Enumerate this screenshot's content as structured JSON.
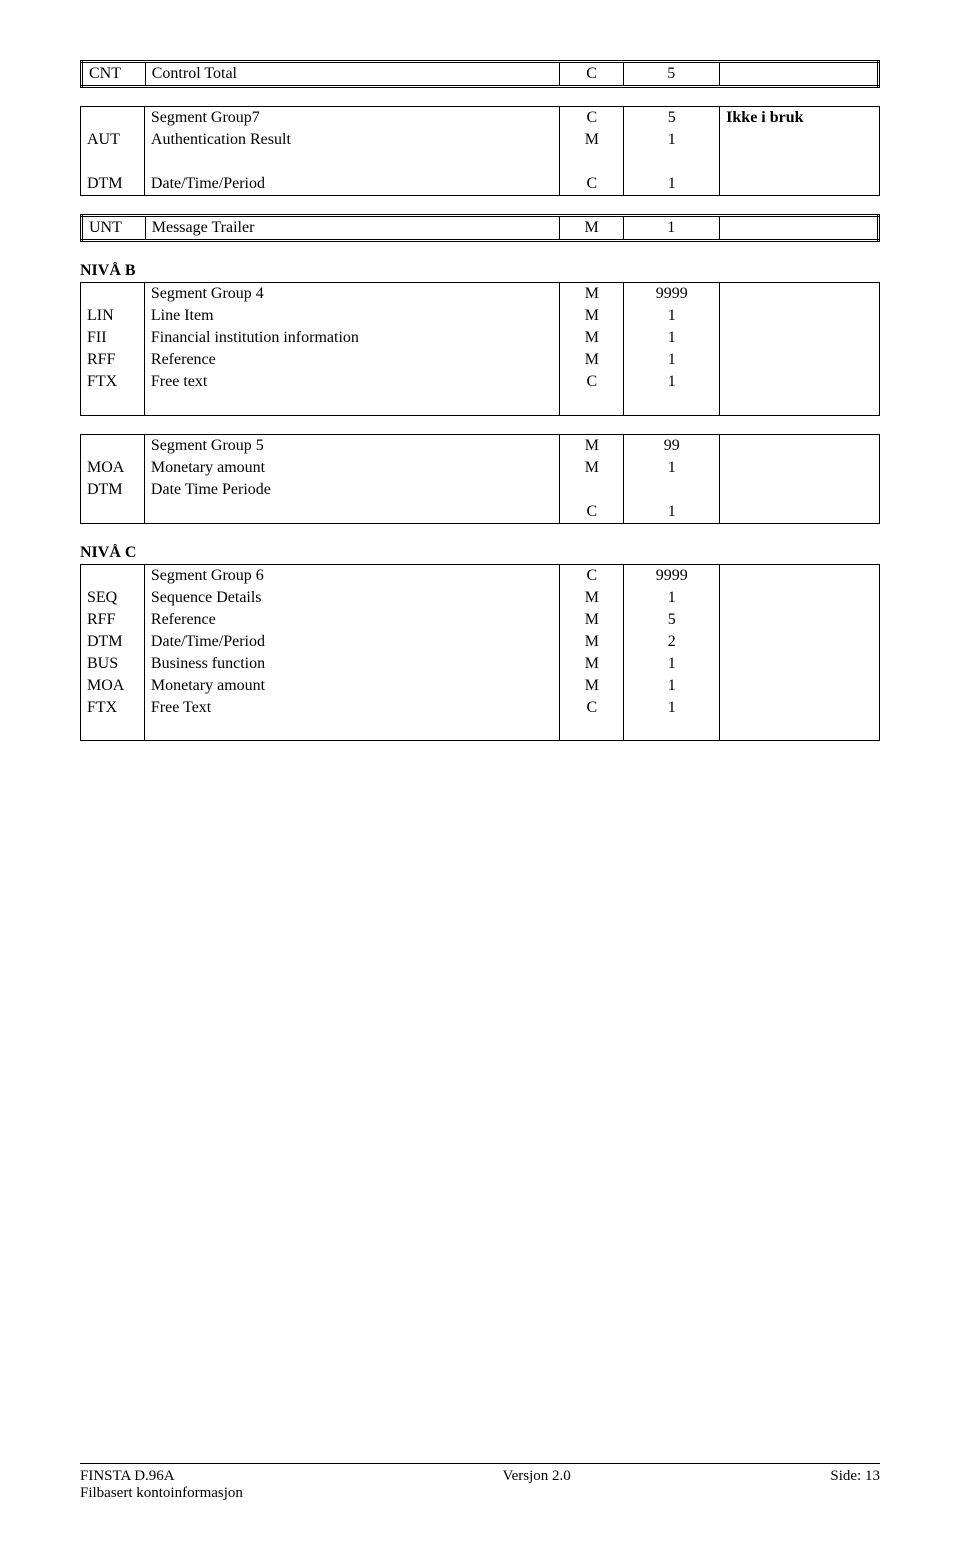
{
  "table1": {
    "rows": [
      {
        "tag": "CNT",
        "name": "Control Total",
        "status": "C",
        "count": "5",
        "note": ""
      }
    ]
  },
  "table2": {
    "rows": [
      {
        "tag": "",
        "name": "Segment Group7",
        "status": "C",
        "count": "5",
        "note": "Ikke i bruk",
        "bold_note": true
      },
      {
        "tag": "AUT",
        "name": "Authentication Result",
        "status": "M",
        "count": "1",
        "note": ""
      },
      {
        "tag": "",
        "name": "",
        "status": "",
        "count": "",
        "note": ""
      },
      {
        "tag": "DTM",
        "name": "Date/Time/Period",
        "status": "C",
        "count": "1",
        "note": ""
      }
    ]
  },
  "table3": {
    "rows": [
      {
        "tag": "UNT",
        "name": "Message Trailer",
        "status": "M",
        "count": "1",
        "note": ""
      }
    ]
  },
  "niva_b_heading": "NIVÅ B",
  "table4": {
    "rows": [
      {
        "tag": "",
        "name": "Segment Group 4",
        "status": "M",
        "count": "9999",
        "note": ""
      },
      {
        "tag": "LIN",
        "name": "Line Item",
        "status": "M",
        "count": "1",
        "note": ""
      },
      {
        "tag": "FII",
        "name": "Financial institution information",
        "status": "M",
        "count": "1",
        "note": ""
      },
      {
        "tag": "RFF",
        "name": "Reference",
        "status": "M",
        "count": "1",
        "note": ""
      },
      {
        "tag": "FTX",
        "name": "Free text",
        "status": "C",
        "count": "1",
        "note": ""
      },
      {
        "tag": "",
        "name": "",
        "status": "",
        "count": "",
        "note": ""
      }
    ]
  },
  "table5": {
    "rows": [
      {
        "tag": "",
        "name": "Segment Group 5",
        "status": "M",
        "count": "99",
        "note": ""
      },
      {
        "tag": "MOA",
        "name": "Monetary amount",
        "status": "M",
        "count": "1",
        "note": ""
      },
      {
        "tag": "DTM",
        "name": "Date Time Periode",
        "status": "",
        "count": "",
        "note": ""
      },
      {
        "tag": "",
        "name": "",
        "status": "C",
        "count": "1",
        "note": ""
      }
    ]
  },
  "niva_c_heading": "NIVÅ C",
  "table6": {
    "rows": [
      {
        "tag": "",
        "name": "Segment Group 6",
        "status": "C",
        "count": "9999",
        "note": ""
      },
      {
        "tag": "SEQ",
        "name": "Sequence Details",
        "status": "M",
        "count": "1",
        "note": ""
      },
      {
        "tag": "RFF",
        "name": "Reference",
        "status": "M",
        "count": "5",
        "note": ""
      },
      {
        "tag": "DTM",
        "name": "Date/Time/Period",
        "status": "M",
        "count": "2",
        "note": ""
      },
      {
        "tag": "BUS",
        "name": "Business function",
        "status": "M",
        "count": "1",
        "note": ""
      },
      {
        "tag": "MOA",
        "name": "Monetary amount",
        "status": "M",
        "count": "1",
        "note": ""
      },
      {
        "tag": "FTX",
        "name": "Free Text",
        "status": "C",
        "count": "1",
        "note": ""
      },
      {
        "tag": "",
        "name": "",
        "status": "",
        "count": "",
        "note": ""
      }
    ]
  },
  "footer": {
    "left1": "FINSTA D.96A",
    "left2": "Filbasert kontoinformasjon",
    "center": "Versjon 2.0",
    "right": "Side: 13"
  }
}
